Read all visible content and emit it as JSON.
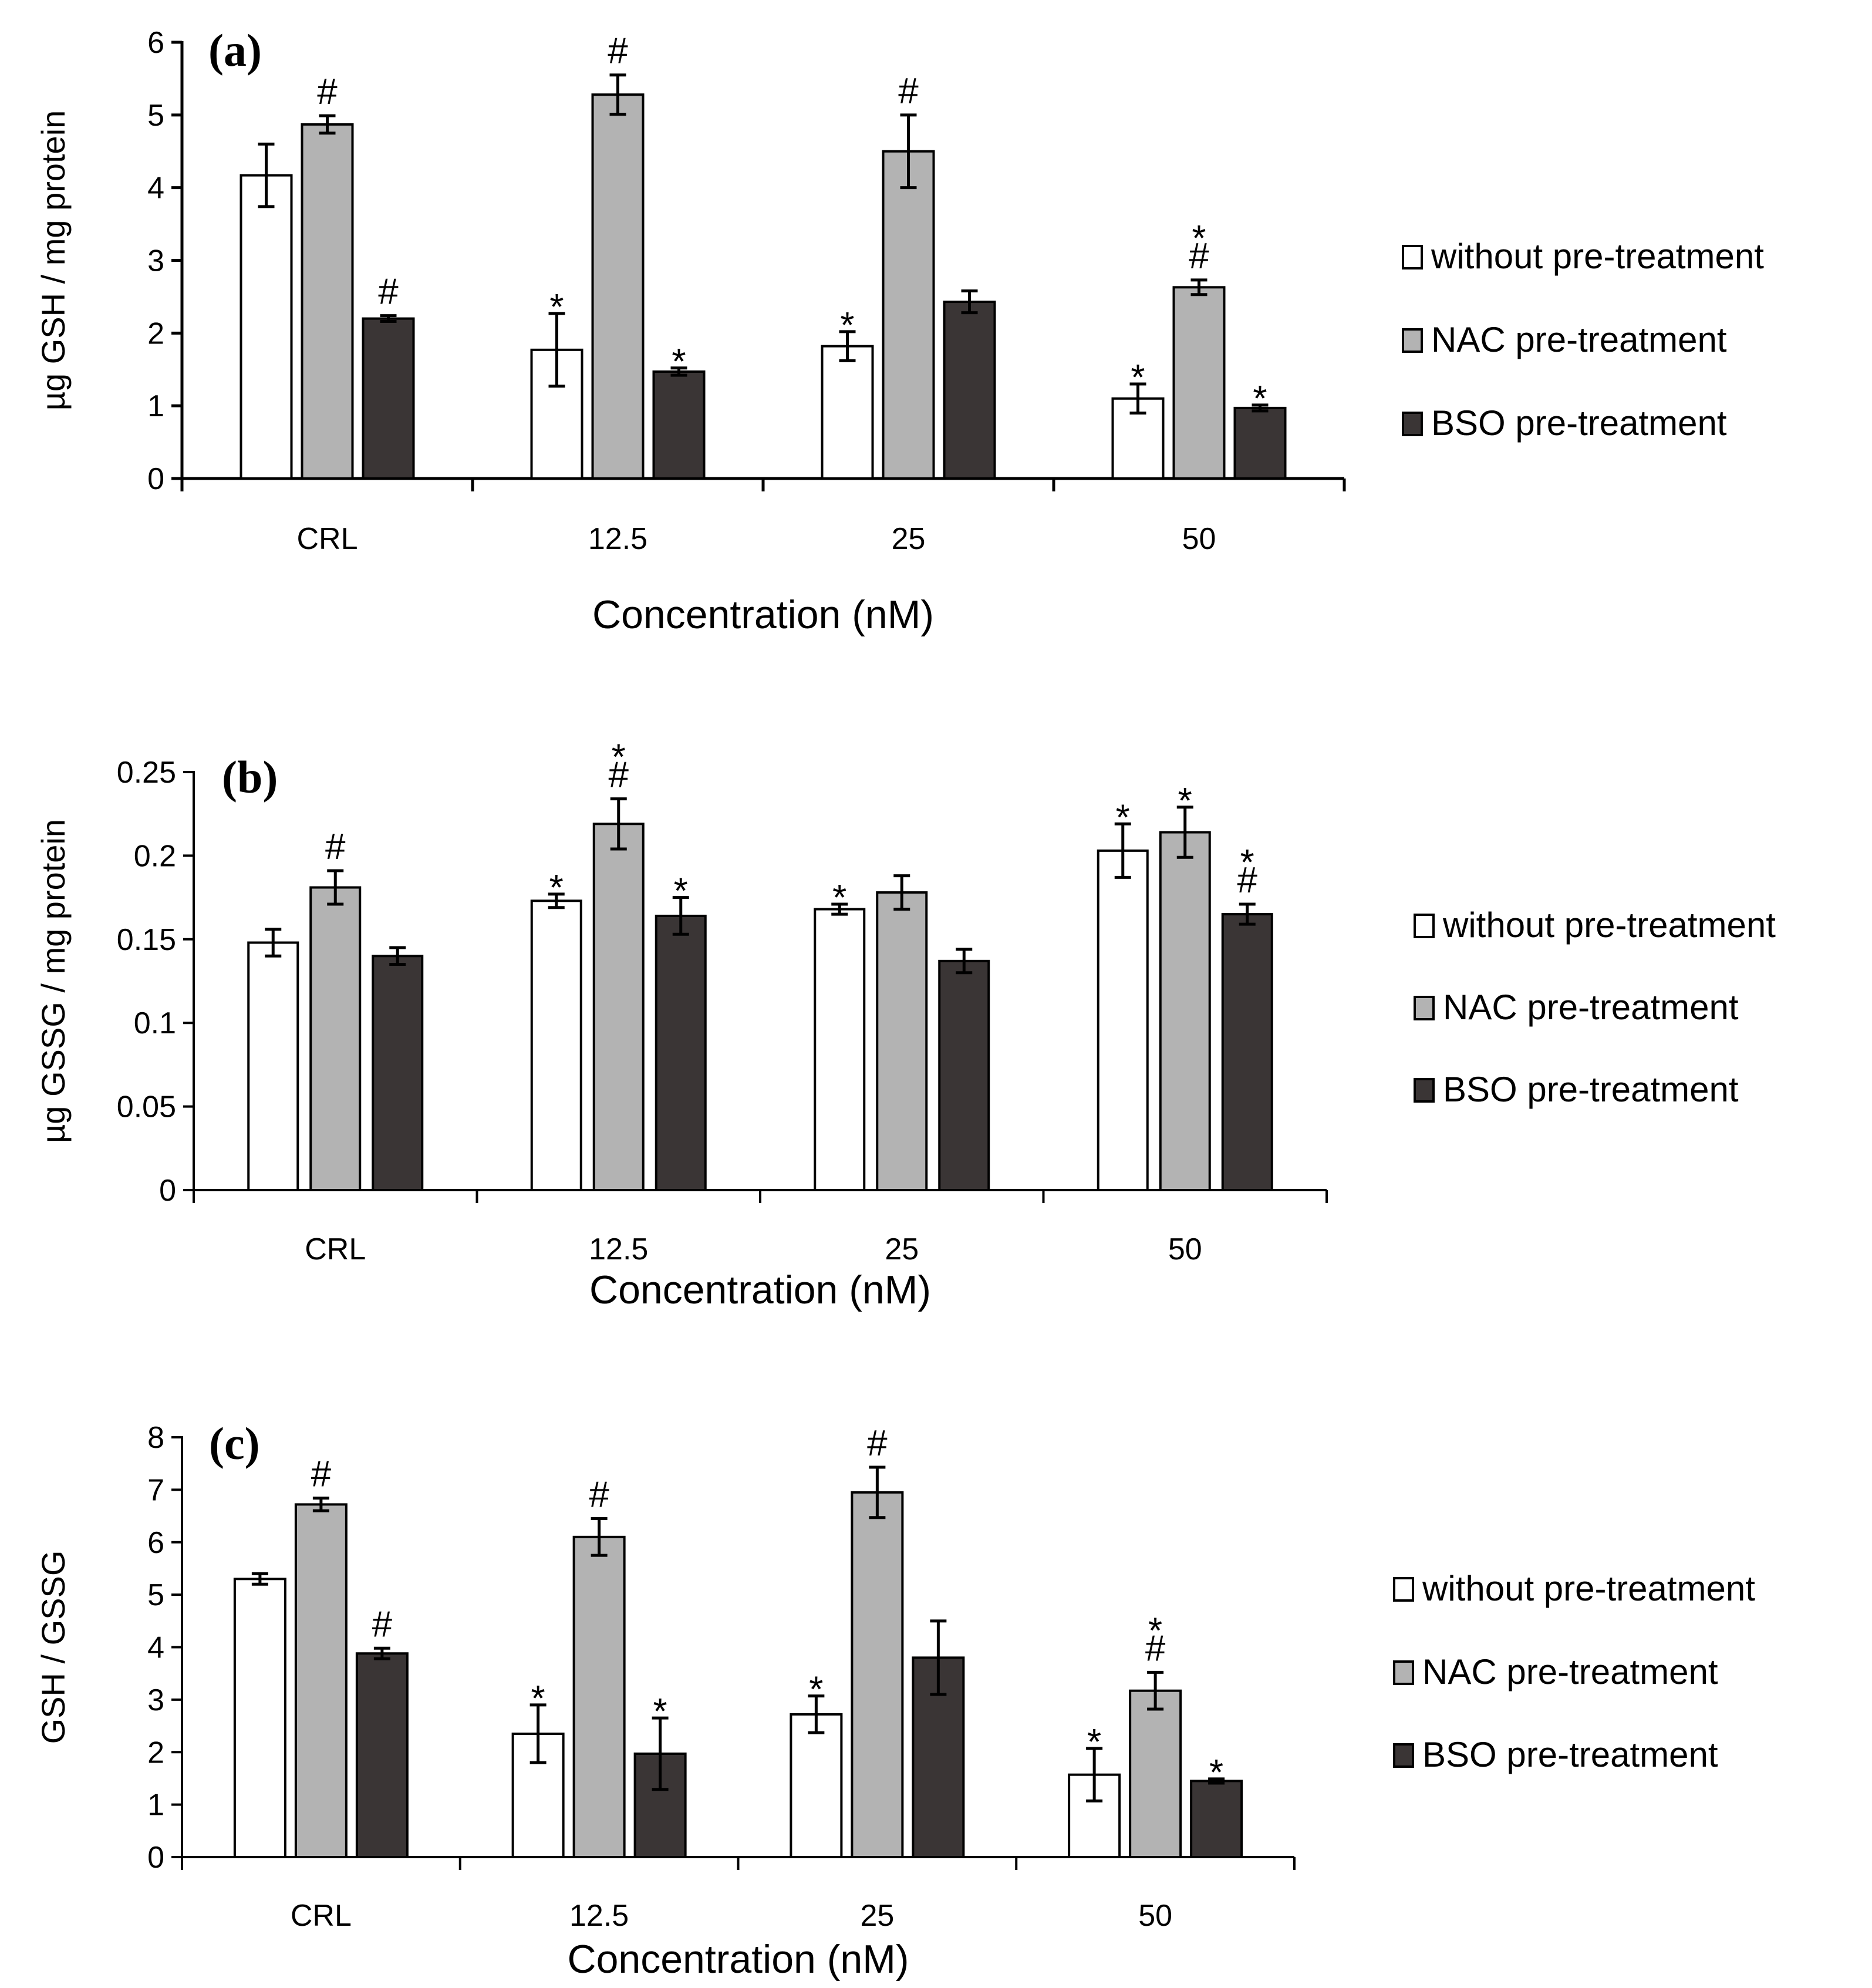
{
  "colors": {
    "without": "#ffffff",
    "nac": "#b3b3b3",
    "bso": "#3a3535",
    "stroke": "#000000"
  },
  "chart_data": [
    {
      "type": "bar",
      "panel_label": "(a)",
      "ylabel": "µg GSH / mg protein",
      "xlabel": "Concentration (nM)",
      "categories": [
        "CRL",
        "12.5",
        "25",
        "50"
      ],
      "ylim": [
        0,
        6
      ],
      "yticks": [
        "0",
        "1",
        "2",
        "3",
        "4",
        "5",
        "6"
      ],
      "legend_position": "right",
      "series": [
        {
          "name": "without pre-treatment",
          "key": "without",
          "values": [
            4.17,
            1.77,
            1.82,
            1.1
          ],
          "errors": [
            0.43,
            0.5,
            0.2,
            0.2
          ],
          "annotations": [
            "",
            "*",
            "*",
            "*"
          ]
        },
        {
          "name": "NAC pre-treatment",
          "key": "nac",
          "values": [
            4.87,
            5.28,
            4.5,
            2.63
          ],
          "errors": [
            0.12,
            0.27,
            0.5,
            0.1
          ],
          "annotations": [
            "#",
            "#",
            "#",
            "*#"
          ]
        },
        {
          "name": "BSO pre-treatment",
          "key": "bso",
          "values": [
            2.2,
            1.47,
            2.43,
            0.97
          ],
          "errors": [
            0.04,
            0.05,
            0.15,
            0.04
          ],
          "annotations": [
            "#",
            "*",
            "",
            "*"
          ]
        }
      ]
    },
    {
      "type": "bar",
      "panel_label": "(b)",
      "ylabel": "µg GSSG / mg protein",
      "xlabel": "Concentration (nM)",
      "categories": [
        "CRL",
        "12.5",
        "25",
        "50"
      ],
      "ylim": [
        0,
        0.25
      ],
      "yticks": [
        "0",
        "0.05",
        "0.1",
        "0.15",
        "0.2",
        "0.25"
      ],
      "legend_position": "right",
      "series": [
        {
          "name": "without pre-treatment",
          "key": "without",
          "values": [
            0.148,
            0.173,
            0.168,
            0.203
          ],
          "errors": [
            0.008,
            0.004,
            0.003,
            0.016
          ],
          "annotations": [
            "",
            "*",
            "*",
            "*"
          ]
        },
        {
          "name": "NAC pre-treatment",
          "key": "nac",
          "values": [
            0.181,
            0.219,
            0.178,
            0.214
          ],
          "errors": [
            0.01,
            0.015,
            0.01,
            0.015
          ],
          "annotations": [
            "#",
            "*#",
            "",
            "*"
          ]
        },
        {
          "name": "BSO pre-treatment",
          "key": "bso",
          "values": [
            0.14,
            0.164,
            0.137,
            0.165
          ],
          "errors": [
            0.005,
            0.011,
            0.007,
            0.006
          ],
          "annotations": [
            "",
            "*",
            "",
            "*#"
          ]
        }
      ]
    },
    {
      "type": "bar",
      "panel_label": "(c)",
      "ylabel": "GSH / GSSG",
      "xlabel": "Concentration (nM)",
      "categories": [
        "CRL",
        "12.5",
        "25",
        "50"
      ],
      "ylim": [
        0,
        8
      ],
      "yticks": [
        "0",
        "1",
        "2",
        "3",
        "4",
        "5",
        "6",
        "7",
        "8"
      ],
      "legend_position": "right",
      "series": [
        {
          "name": "without pre-treatment",
          "key": "without",
          "values": [
            5.3,
            2.35,
            2.72,
            1.57
          ],
          "errors": [
            0.1,
            0.55,
            0.35,
            0.5
          ],
          "annotations": [
            "",
            "*",
            "*",
            "*"
          ]
        },
        {
          "name": "NAC pre-treatment",
          "key": "nac",
          "values": [
            6.72,
            6.1,
            6.95,
            3.17
          ],
          "errors": [
            0.12,
            0.35,
            0.48,
            0.35
          ],
          "annotations": [
            "#",
            "#",
            "#",
            "*#"
          ]
        },
        {
          "name": "BSO pre-treatment",
          "key": "bso",
          "values": [
            3.88,
            1.97,
            3.8,
            1.45
          ],
          "errors": [
            0.1,
            0.68,
            0.7,
            0.04
          ],
          "annotations": [
            "#",
            "*",
            "",
            "*"
          ]
        }
      ]
    }
  ]
}
